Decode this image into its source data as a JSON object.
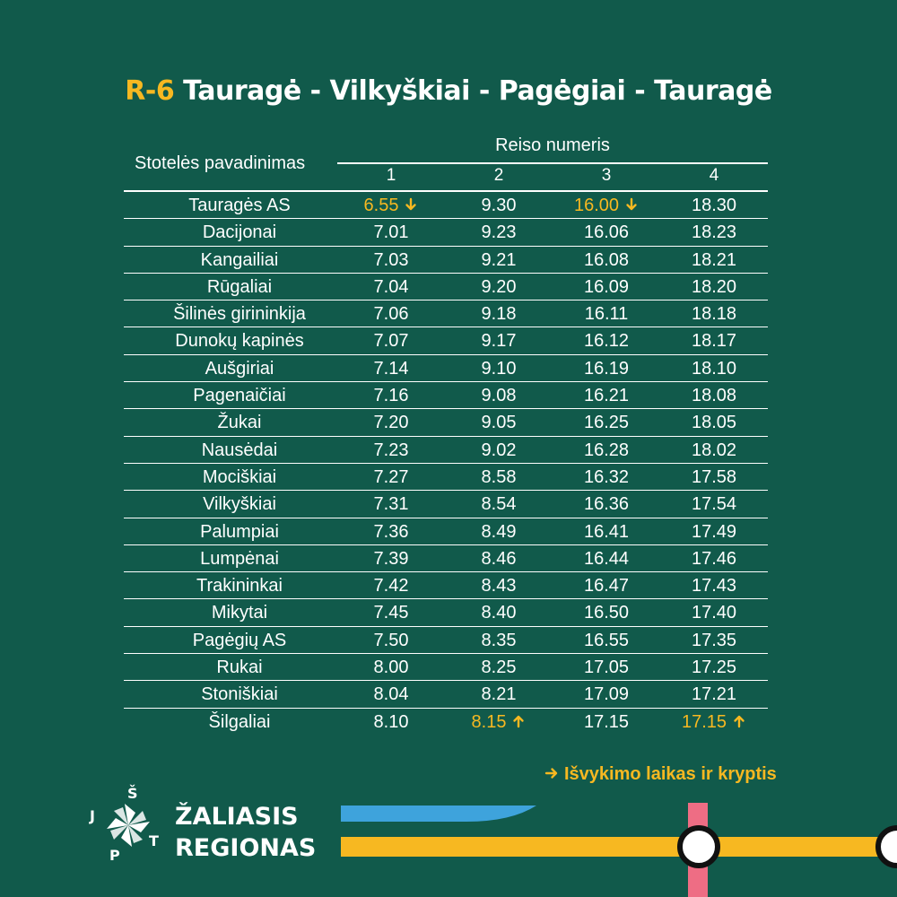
{
  "title": {
    "code": "R-6",
    "route": " Tauragė - Vilkyškiai - Pagėgiai - Tauragė"
  },
  "header": {
    "stop_label": "Stotelės pavadinimas",
    "trip_label": "Reiso numeris",
    "trip_numbers": [
      "1",
      "2",
      "3",
      "4"
    ]
  },
  "rows": [
    {
      "stop": "Tauragės AS",
      "times": [
        "6.55",
        "9.30",
        "16.00",
        "18.30"
      ]
    },
    {
      "stop": "Dacijonai",
      "times": [
        "7.01",
        "9.23",
        "16.06",
        "18.23"
      ]
    },
    {
      "stop": "Kangailiai",
      "times": [
        "7.03",
        "9.21",
        "16.08",
        "18.21"
      ]
    },
    {
      "stop": "Rūgaliai",
      "times": [
        "7.04",
        "9.20",
        "16.09",
        "18.20"
      ]
    },
    {
      "stop": "Šilinės girininkija",
      "times": [
        "7.06",
        "9.18",
        "16.11",
        "18.18"
      ]
    },
    {
      "stop": "Dunokų kapinės",
      "times": [
        "7.07",
        "9.17",
        "16.12",
        "18.17"
      ]
    },
    {
      "stop": "Aušgiriai",
      "times": [
        "7.14",
        "9.10",
        "16.19",
        "18.10"
      ]
    },
    {
      "stop": "Pagenaičiai",
      "times": [
        "7.16",
        "9.08",
        "16.21",
        "18.08"
      ]
    },
    {
      "stop": "Žukai",
      "times": [
        "7.20",
        "9.05",
        "16.25",
        "18.05"
      ]
    },
    {
      "stop": "Nausėdai",
      "times": [
        "7.23",
        "9.02",
        "16.28",
        "18.02"
      ]
    },
    {
      "stop": "Mociškiai",
      "times": [
        "7.27",
        "8.58",
        "16.32",
        "17.58"
      ]
    },
    {
      "stop": "Vilkyškiai",
      "times": [
        "7.31",
        "8.54",
        "16.36",
        "17.54"
      ]
    },
    {
      "stop": "Palumpiai",
      "times": [
        "7.36",
        "8.49",
        "16.41",
        "17.49"
      ]
    },
    {
      "stop": "Lumpėnai",
      "times": [
        "7.39",
        "8.46",
        "16.44",
        "17.46"
      ]
    },
    {
      "stop": "Trakininkai",
      "times": [
        "7.42",
        "8.43",
        "16.47",
        "17.43"
      ]
    },
    {
      "stop": "Mikytai",
      "times": [
        "7.45",
        "8.40",
        "16.50",
        "17.40"
      ]
    },
    {
      "stop": "Pagėgių AS",
      "times": [
        "7.50",
        "8.35",
        "16.55",
        "17.35"
      ]
    },
    {
      "stop": "Rukai",
      "times": [
        "8.00",
        "8.25",
        "17.05",
        "17.25"
      ]
    },
    {
      "stop": "Stoniškiai",
      "times": [
        "8.04",
        "8.21",
        "17.09",
        "17.21"
      ]
    },
    {
      "stop": "Šilgaliai",
      "times": [
        "8.10",
        "8.15",
        "17.15",
        "17.15"
      ]
    }
  ],
  "departures": [
    {
      "row": 0,
      "col": 0,
      "direction": "down"
    },
    {
      "row": 0,
      "col": 2,
      "direction": "down"
    },
    {
      "row": 19,
      "col": 1,
      "direction": "up"
    },
    {
      "row": 19,
      "col": 3,
      "direction": "up"
    }
  ],
  "legend": {
    "text": "Išvykimo laikas ir kryptis",
    "icon": "arrow-right-icon"
  },
  "logo": {
    "line1": "ŽALIASIS",
    "line2": "REGIONAS",
    "letters": [
      "J",
      "Š",
      "T",
      "P"
    ]
  },
  "colors": {
    "background": "#115a4b",
    "accent": "#f7b821",
    "blue": "#3ea3dc",
    "pink": "#ee6d84",
    "text": "#ffffff"
  }
}
